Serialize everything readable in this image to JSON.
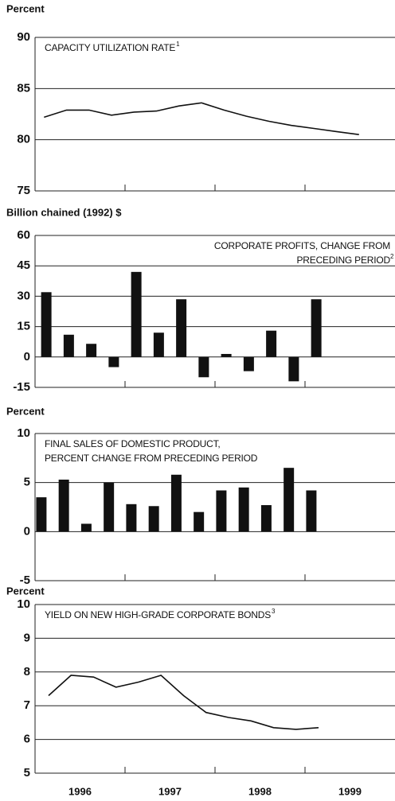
{
  "chart_data": [
    {
      "type": "line",
      "ylabel": "Percent",
      "title": [
        "CAPACITY UTILIZATION RATE"
      ],
      "title_note": "1",
      "x": [
        1996.1,
        1996.35,
        1996.6,
        1996.85,
        1997.1,
        1997.35,
        1997.6,
        1997.85,
        1998.1,
        1998.35,
        1998.6,
        1998.85,
        1999.1,
        1999.35,
        1999.6
      ],
      "values": [
        82.2,
        82.9,
        82.9,
        82.4,
        82.7,
        82.8,
        83.3,
        83.6,
        82.9,
        82.3,
        81.8,
        81.4,
        81.1,
        80.8,
        80.5
      ],
      "color": "#111111",
      "xlim": [
        1996,
        2000
      ],
      "ylim": [
        75,
        90
      ],
      "yticks": [
        75,
        80,
        85,
        90
      ],
      "grid": true
    },
    {
      "type": "bar",
      "ylabel": "Billion chained (1992) $",
      "title": [
        "CORPORATE PROFITS, CHANGE FROM",
        "PRECEDING PERIOD"
      ],
      "title_note": "2",
      "x": [
        1996.125,
        1996.375,
        1996.625,
        1996.875,
        1997.125,
        1997.375,
        1997.625,
        1997.875,
        1998.125,
        1998.375,
        1998.625,
        1998.875,
        1999.125
      ],
      "values": [
        32,
        11,
        6.5,
        -5,
        42,
        12,
        28.5,
        -10,
        1.5,
        -7,
        13,
        -12,
        28.5
      ],
      "color": "#111111",
      "xlim": [
        1996,
        2000
      ],
      "ylim": [
        -15,
        60
      ],
      "yticks": [
        -15,
        0,
        15,
        30,
        45,
        60
      ],
      "grid": true
    },
    {
      "type": "bar",
      "ylabel": "Percent",
      "title": [
        "FINAL SALES OF DOMESTIC PRODUCT,",
        "PERCENT CHANGE FROM PRECEDING PERIOD"
      ],
      "x": [
        1996.07,
        1996.32,
        1996.57,
        1996.82,
        1997.07,
        1997.32,
        1997.57,
        1997.82,
        1998.07,
        1998.32,
        1998.57,
        1998.82,
        1999.07
      ],
      "values": [
        3.5,
        5.3,
        0.8,
        5.0,
        2.8,
        2.6,
        5.8,
        2.0,
        4.2,
        4.5,
        2.7,
        6.5,
        4.2
      ],
      "color": "#111111",
      "xlim": [
        1996,
        2000
      ],
      "ylim": [
        -5,
        10
      ],
      "yticks": [
        -5,
        0,
        5,
        10
      ],
      "grid": true
    },
    {
      "type": "line",
      "ylabel": "Percent",
      "title": [
        "YIELD ON NEW HIGH-GRADE CORPORATE BONDS"
      ],
      "title_note": "3",
      "x": [
        1996.15,
        1996.4,
        1996.65,
        1996.9,
        1997.15,
        1997.4,
        1997.65,
        1997.9,
        1998.15,
        1998.4,
        1998.65,
        1998.9,
        1999.15
      ],
      "values": [
        7.3,
        7.9,
        7.85,
        7.55,
        7.7,
        7.9,
        7.3,
        6.8,
        6.65,
        6.55,
        6.35,
        6.3,
        6.35
      ],
      "color": "#111111",
      "xlim": [
        1996,
        2000
      ],
      "ylim": [
        5,
        10
      ],
      "yticks": [
        5,
        6,
        7,
        8,
        9,
        10
      ],
      "grid": true,
      "xticks": [
        1996,
        1997,
        1998,
        1999
      ]
    }
  ]
}
